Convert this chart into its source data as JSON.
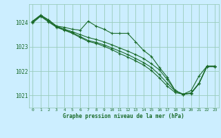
{
  "title": "Graphe pression niveau de la mer (hPa)",
  "bg_color": "#cceeff",
  "grid_color": "#99ccbb",
  "line_color": "#1a6b2a",
  "xlim": [
    -0.5,
    23.5
  ],
  "ylim": [
    1020.5,
    1024.75
  ],
  "yticks": [
    1021,
    1022,
    1023,
    1024
  ],
  "xtick_labels": [
    "0",
    "1",
    "2",
    "3",
    "4",
    "5",
    "6",
    "7",
    "8",
    "9",
    "10",
    "11",
    "12",
    "13",
    "14",
    "15",
    "16",
    "17",
    "18",
    "19",
    "20",
    "21",
    "22",
    "23"
  ],
  "series": [
    [
      1024.05,
      1024.3,
      1024.1,
      1023.85,
      1023.8,
      1023.72,
      1023.68,
      1024.05,
      1023.85,
      1023.72,
      1023.55,
      1023.55,
      1023.55,
      1023.2,
      1022.85,
      1022.6,
      1022.15,
      1021.75,
      1021.2,
      1021.05,
      1021.2,
      1021.8,
      1022.2,
      1022.2
    ],
    [
      1024.05,
      1024.3,
      1024.1,
      1023.85,
      1023.72,
      1023.62,
      1023.5,
      1023.38,
      1023.3,
      1023.2,
      1023.08,
      1022.95,
      1022.82,
      1022.68,
      1022.52,
      1022.3,
      1022.05,
      1021.65,
      1021.2,
      1021.05,
      1021.1,
      1021.5,
      1022.2,
      1022.2
    ],
    [
      1024.0,
      1024.28,
      1024.05,
      1023.82,
      1023.7,
      1023.58,
      1023.42,
      1023.26,
      1023.18,
      1023.08,
      1022.95,
      1022.82,
      1022.68,
      1022.52,
      1022.35,
      1022.15,
      1021.85,
      1021.5,
      1021.18,
      1021.05,
      1021.1,
      1021.5,
      1022.2,
      1022.2
    ],
    [
      1023.98,
      1024.25,
      1024.02,
      1023.8,
      1023.68,
      1023.55,
      1023.38,
      1023.22,
      1023.14,
      1023.02,
      1022.88,
      1022.72,
      1022.58,
      1022.42,
      1022.25,
      1022.02,
      1021.72,
      1021.38,
      1021.12,
      1021.05,
      1021.08,
      1021.48,
      1022.18,
      1022.18
    ]
  ]
}
